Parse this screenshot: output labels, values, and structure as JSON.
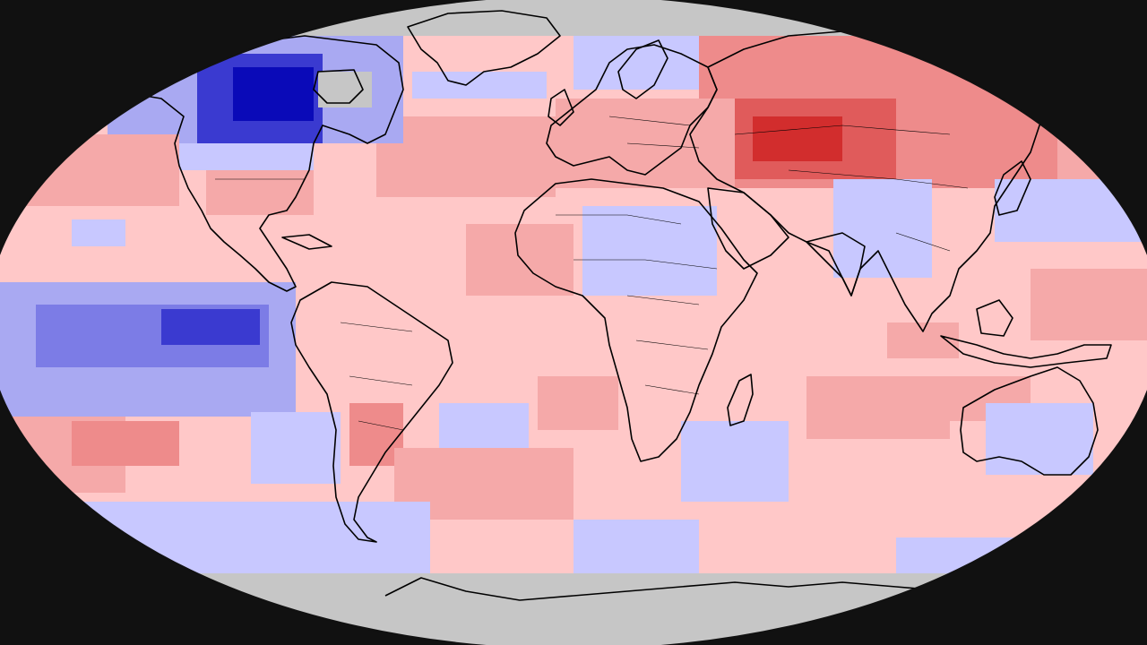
{
  "map": {
    "projection": "robinson",
    "background": "#111111",
    "ocean_base": "#ffc8c8",
    "no_data_color": "#c6c6c6",
    "coast_color": "#000000",
    "colors": {
      "warm_light": "#ffc8c8",
      "warm_mid": "#f5a9a9",
      "warm_strong": "#ee8b8b",
      "warm_deep": "#e05b5b",
      "warm_peak": "#d22d2d",
      "cool_light": "#c8c8ff",
      "cool_mid": "#a9a9f2",
      "cool_strong": "#7c7ce6",
      "cool_deep": "#3a3ad0",
      "cool_peak": "#0a0ab8"
    },
    "anomaly_regions": [
      {
        "name": "north-canada-cold",
        "tone": "cool_mid"
      },
      {
        "name": "hudson-bay-cold",
        "tone": "cool_peak"
      },
      {
        "name": "siberia-warm",
        "tone": "warm_strong"
      },
      {
        "name": "central-asia-warm",
        "tone": "warm_peak"
      },
      {
        "name": "eastern-pacific-cold",
        "tone": "cool_strong"
      },
      {
        "name": "southern-ocean-cold",
        "tone": "cool_light"
      },
      {
        "name": "antarctica-no-data",
        "tone": "no_data"
      },
      {
        "name": "arctic-no-data",
        "tone": "no_data"
      }
    ]
  }
}
